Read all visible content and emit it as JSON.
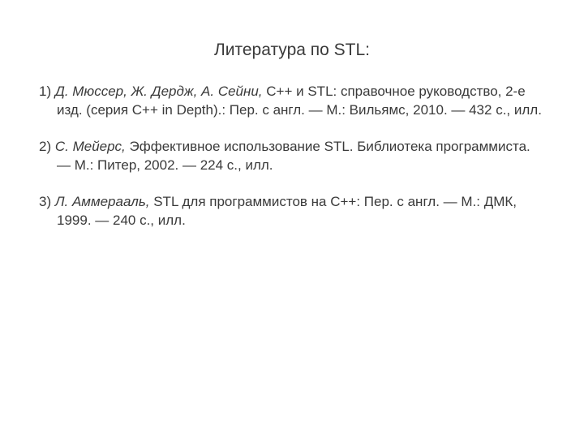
{
  "title": "Литература по STL:",
  "items": [
    {
      "number": "1)",
      "authors": "Д. Мюссер, Ж. Дердж, А. Сейни,",
      "rest": " C++ и STL: справочное руководство, 2-е изд. (серия C++ in Depth).: Пер. с англ. — М.: Вильямс, 2010. — 432 с., илл."
    },
    {
      "number": "2)",
      "authors": "С. Мейерс,",
      "rest": " Эффективное использование STL. Библиотека программиста. — М.: Питер, 2002. — 224 с., илл."
    },
    {
      "number": "3)",
      "authors": "Л. Аммерааль,",
      "rest": " STL для программистов на C++: Пер. с англ. — М.: ДМК, 1999. — 240 с., илл."
    }
  ]
}
